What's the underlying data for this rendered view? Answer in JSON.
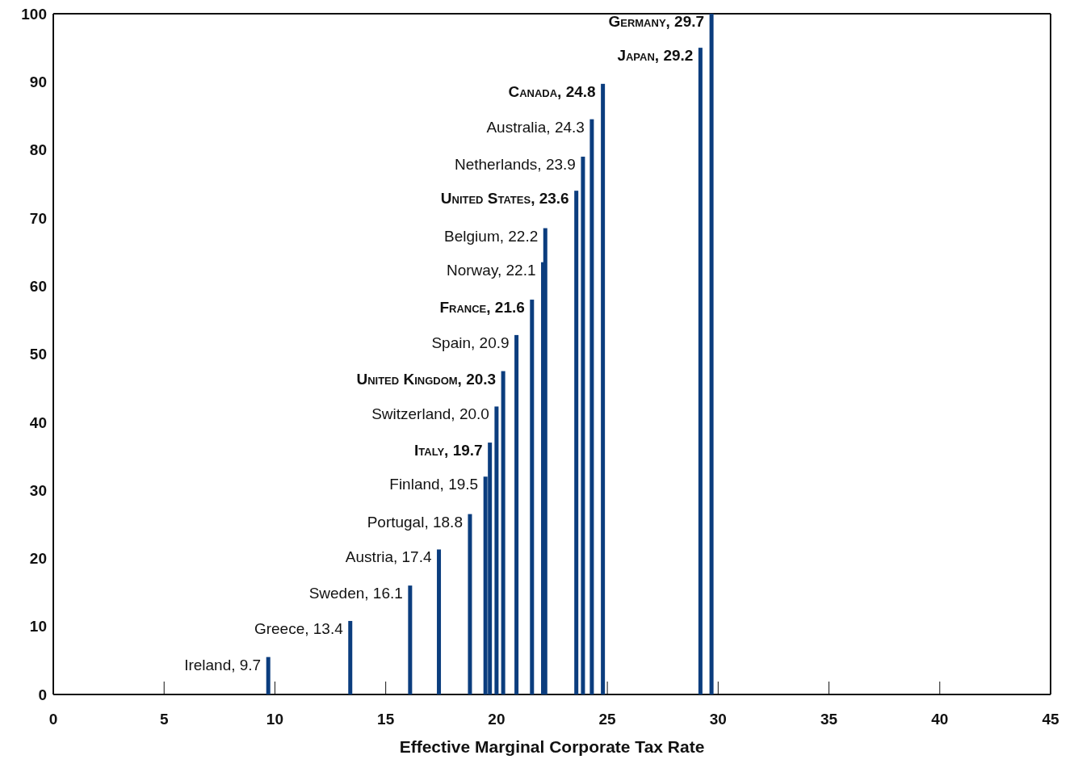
{
  "chart_data": {
    "type": "bar",
    "xlabel": "Effective Marginal Corporate Tax Rate",
    "series": [
      {
        "color": "#0b3d7e",
        "x": [
          9.7,
          13.4,
          16.1,
          17.4,
          18.8,
          19.5,
          20.0,
          20.9,
          22.1,
          22.2,
          23.9,
          24.3
        ],
        "values": [
          5.5,
          10.8,
          16,
          21.3,
          26.5,
          32,
          42.3,
          52.8,
          63.5,
          68.5,
          79,
          84.5
        ]
      },
      {
        "color": "#0b3d7e",
        "x": [
          19.7,
          20.3,
          21.6,
          23.6,
          24.8,
          29.2,
          29.7
        ],
        "values": [
          37,
          47.5,
          58,
          74,
          89.7,
          95,
          100
        ]
      }
    ],
    "annotations": [
      {
        "text": "Ireland, 9.7",
        "x": 9.7,
        "y": 5.5
      },
      {
        "text": "Greece, 13.4",
        "x": 13.4,
        "y": 10.8
      },
      {
        "text": "Sweden, 16.1",
        "x": 16.1,
        "y": 16
      },
      {
        "text": "Austria, 17.4",
        "x": 17.4,
        "y": 21.3
      },
      {
        "text": "Portugal, 18.8",
        "x": 18.8,
        "y": 26.5
      },
      {
        "text": "Finland, 19.5",
        "x": 19.5,
        "y": 32
      },
      {
        "text": "Italy, 19.7",
        "x": 19.7,
        "y": 37
      },
      {
        "text": "Switzerland, 20.0",
        "x": 20.0,
        "y": 42.3
      },
      {
        "text": "United Kingdom, 20.3",
        "x": 20.3,
        "y": 47.5
      },
      {
        "text": "Spain, 20.9",
        "x": 20.9,
        "y": 52.8
      },
      {
        "text": "France, 21.6",
        "x": 21.6,
        "y": 58
      },
      {
        "text": "Norway, 22.1",
        "x": 22.1,
        "y": 63.5
      },
      {
        "text": "Belgium, 22.2",
        "x": 22.2,
        "y": 68.5
      },
      {
        "text": "United States, 23.6",
        "x": 23.6,
        "y": 74
      },
      {
        "text": "Netherlands, 23.9",
        "x": 23.9,
        "y": 79
      },
      {
        "text": "Australia, 24.3",
        "x": 24.3,
        "y": 84.5
      },
      {
        "text": "Canada, 24.8",
        "x": 24.8,
        "y": 89.7
      },
      {
        "text": "Japan, 29.2",
        "x": 29.2,
        "y": 95
      },
      {
        "text": "Germany, 29.7",
        "x": 29.7,
        "y": 100
      }
    ],
    "xlim": [
      0,
      45
    ],
    "xticks": [
      0,
      5,
      10,
      15,
      20,
      25,
      30,
      35,
      40,
      45
    ],
    "ylim": [
      0,
      100
    ],
    "yticks": [
      0,
      10,
      20,
      30,
      40,
      50,
      60,
      70,
      80,
      90,
      100
    ],
    "grid": false
  }
}
